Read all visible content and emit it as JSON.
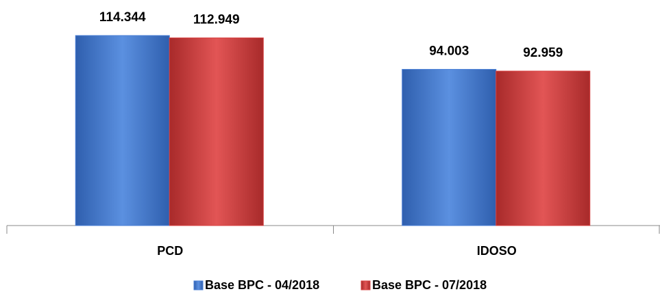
{
  "chart_data": {
    "type": "bar",
    "categories": [
      "PCD",
      "IDOSO"
    ],
    "series": [
      {
        "name": "Base BPC - 04/2018",
        "color": "#4a7fd6",
        "values": [
          114344,
          94003
        ],
        "value_labels": [
          "114.344",
          "94.003"
        ]
      },
      {
        "name": "Base BPC - 07/2018",
        "color": "#d84242",
        "values": [
          112949,
          92959
        ],
        "value_labels": [
          "112.949",
          "92.959"
        ]
      }
    ]
  }
}
